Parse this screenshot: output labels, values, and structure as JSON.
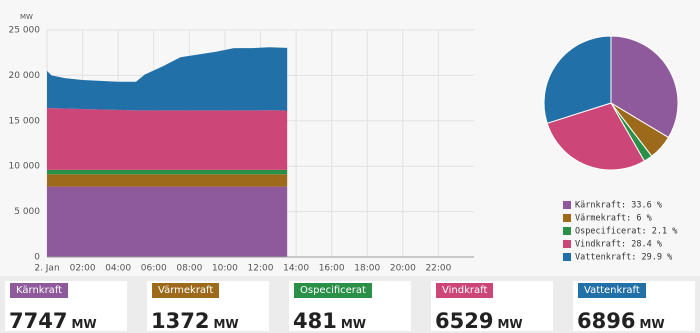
{
  "chart_data": [
    {
      "type": "stacked-area",
      "y_label": "MW",
      "x": [
        0,
        0.25,
        1,
        2,
        3,
        4,
        5,
        5.5,
        6.5,
        7.5,
        8.5,
        9.5,
        10.5,
        11.5,
        12.5,
        13.5
      ],
      "xlim": [
        0,
        24
      ],
      "xticks": [
        {
          "value": 0,
          "label": "2. Jan"
        },
        {
          "value": 2,
          "label": "02:00"
        },
        {
          "value": 4,
          "label": "04:00"
        },
        {
          "value": 6,
          "label": "06:00"
        },
        {
          "value": 8,
          "label": "08:00"
        },
        {
          "value": 10,
          "label": "10:00"
        },
        {
          "value": 12,
          "label": "12:00"
        },
        {
          "value": 14,
          "label": "14:00"
        },
        {
          "value": 16,
          "label": "16:00"
        },
        {
          "value": 18,
          "label": "18:00"
        },
        {
          "value": 20,
          "label": "20:00"
        },
        {
          "value": 22,
          "label": "22:00"
        }
      ],
      "ylim": [
        0,
        25000
      ],
      "yticks": [
        0,
        {
          "value": 5000,
          "label": "5 000"
        },
        {
          "value": 10000,
          "label": "10 000"
        },
        {
          "value": 15000,
          "label": "15 000"
        },
        {
          "value": 20000,
          "label": "20 000"
        },
        {
          "value": 25000,
          "label": "25 000"
        }
      ],
      "grid": true,
      "series": [
        {
          "name": "Kärnkraft",
          "color": "#8e5a9b",
          "values": [
            7747,
            7747,
            7747,
            7747,
            7747,
            7747,
            7747,
            7747,
            7747,
            7747,
            7747,
            7747,
            7747,
            7747,
            7747,
            7747
          ]
        },
        {
          "name": "Värmekraft",
          "color": "#9c6a1a",
          "values": [
            1372,
            1372,
            1372,
            1372,
            1372,
            1372,
            1372,
            1372,
            1372,
            1372,
            1372,
            1372,
            1372,
            1372,
            1372,
            1372
          ]
        },
        {
          "name": "Ospecificerat",
          "color": "#2a8f47",
          "values": [
            481,
            481,
            481,
            481,
            481,
            481,
            481,
            481,
            481,
            481,
            481,
            481,
            481,
            481,
            481,
            481
          ]
        },
        {
          "name": "Vindkraft",
          "color": "#cc4677",
          "values": [
            6800,
            6800,
            6750,
            6700,
            6650,
            6600,
            6550,
            6550,
            6550,
            6550,
            6550,
            6550,
            6550,
            6550,
            6560,
            6529
          ]
        },
        {
          "name": "Vattenkraft",
          "color": "#2270a8",
          "values": [
            4100,
            3600,
            3350,
            3200,
            3150,
            3100,
            3150,
            3950,
            4850,
            5850,
            6150,
            6450,
            6850,
            6850,
            6940,
            6896
          ]
        }
      ]
    },
    {
      "type": "pie",
      "labels": [
        "Kärnkraft",
        "Värmekraft",
        "Ospecificerat",
        "Vindkraft",
        "Vattenkraft"
      ],
      "colors": [
        "#8e5a9b",
        "#9c6a1a",
        "#2a8f47",
        "#cc4677",
        "#2270a8"
      ],
      "values": [
        33.6,
        6,
        2.1,
        28.4,
        29.9
      ],
      "value_labels": [
        "Kärnkraft: 33.6 %",
        "Värmekraft: 6 %",
        "Ospecificerat: 2.1 %",
        "Vindkraft: 28.4 %",
        "Vattenkraft: 29.9 %"
      ]
    }
  ],
  "cards": [
    {
      "label": "Kärnkraft",
      "color": "#8e5a9b",
      "value": "7747",
      "unit": "MW"
    },
    {
      "label": "Värmekraft",
      "color": "#9c6a1a",
      "value": "1372",
      "unit": "MW"
    },
    {
      "label": "Ospecificerat",
      "color": "#2a8f47",
      "value": "481",
      "unit": "MW"
    },
    {
      "label": "Vindkraft",
      "color": "#cc4677",
      "value": "6529",
      "unit": "MW"
    },
    {
      "label": "Vattenkraft",
      "color": "#2270a8",
      "value": "6896",
      "unit": "MW"
    }
  ]
}
